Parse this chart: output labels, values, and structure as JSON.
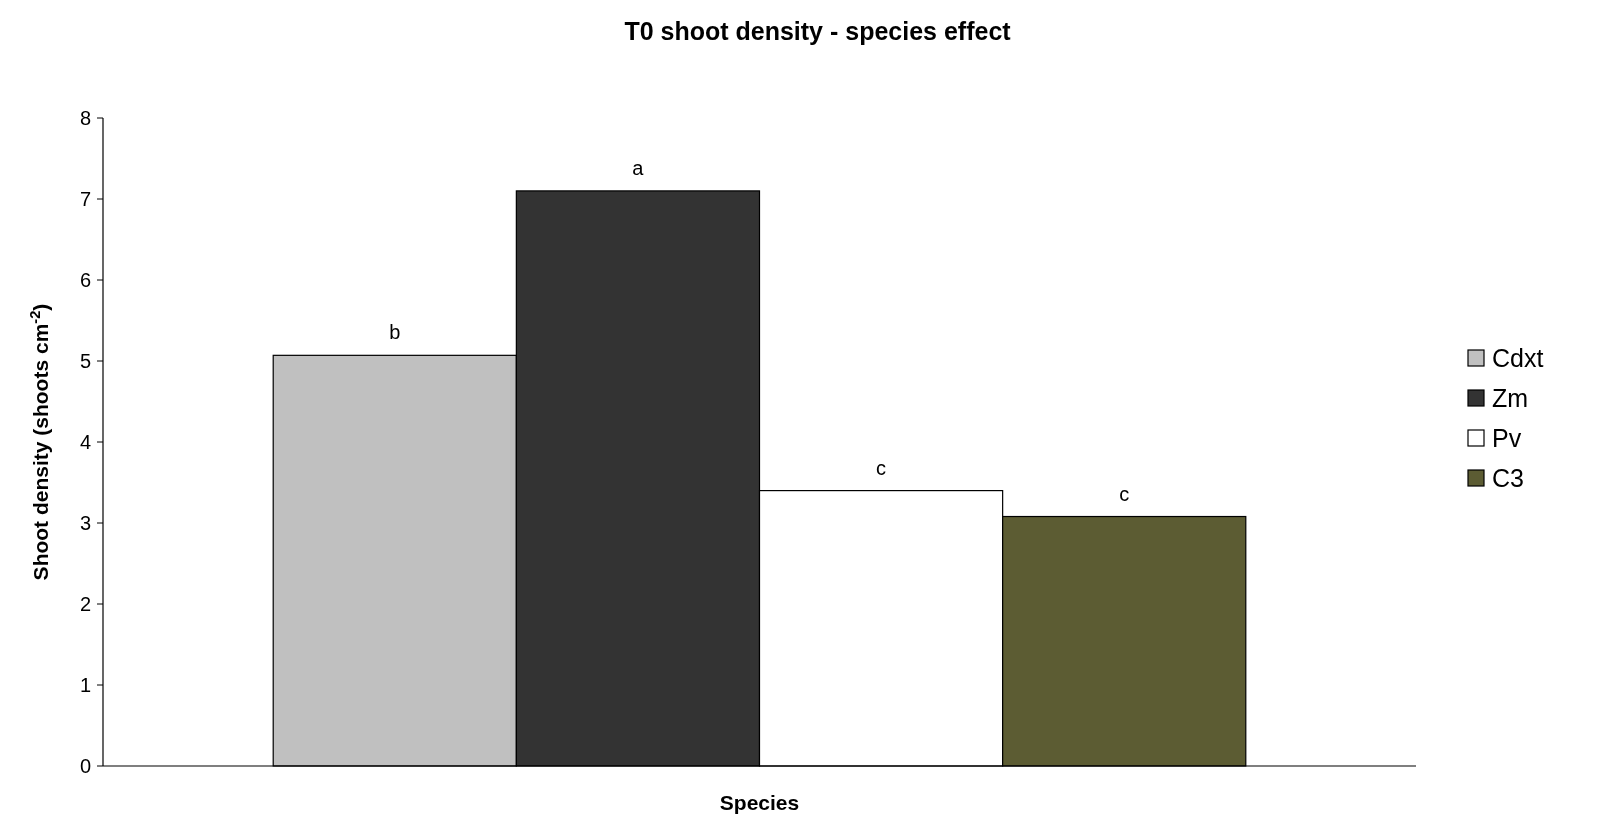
{
  "chart_data": {
    "type": "bar",
    "title": "T0 shoot density - species effect",
    "xlabel": "Species",
    "ylabel": "Shoot density (shoots cm$^{-2}$)",
    "categories": [
      null
    ],
    "series": [
      {
        "name": "Cdxt",
        "color": "#c0c0c0",
        "values": [
          5.07
        ],
        "value_labels": [
          "b"
        ]
      },
      {
        "name": "Zm",
        "color": "#333333",
        "values": [
          7.1
        ],
        "value_labels": [
          "a"
        ]
      },
      {
        "name": "Pv",
        "color": "#ffffff",
        "values": [
          3.4
        ],
        "value_labels": [
          "c"
        ]
      },
      {
        "name": "C3",
        "color": "#5c5c33",
        "values": [
          3.08
        ],
        "value_labels": [
          "c"
        ]
      }
    ],
    "ylim": [
      0,
      8
    ],
    "yticks": [
      0,
      1,
      2,
      3,
      4,
      5,
      6,
      7,
      8
    ],
    "grid": false,
    "legend": "right"
  }
}
